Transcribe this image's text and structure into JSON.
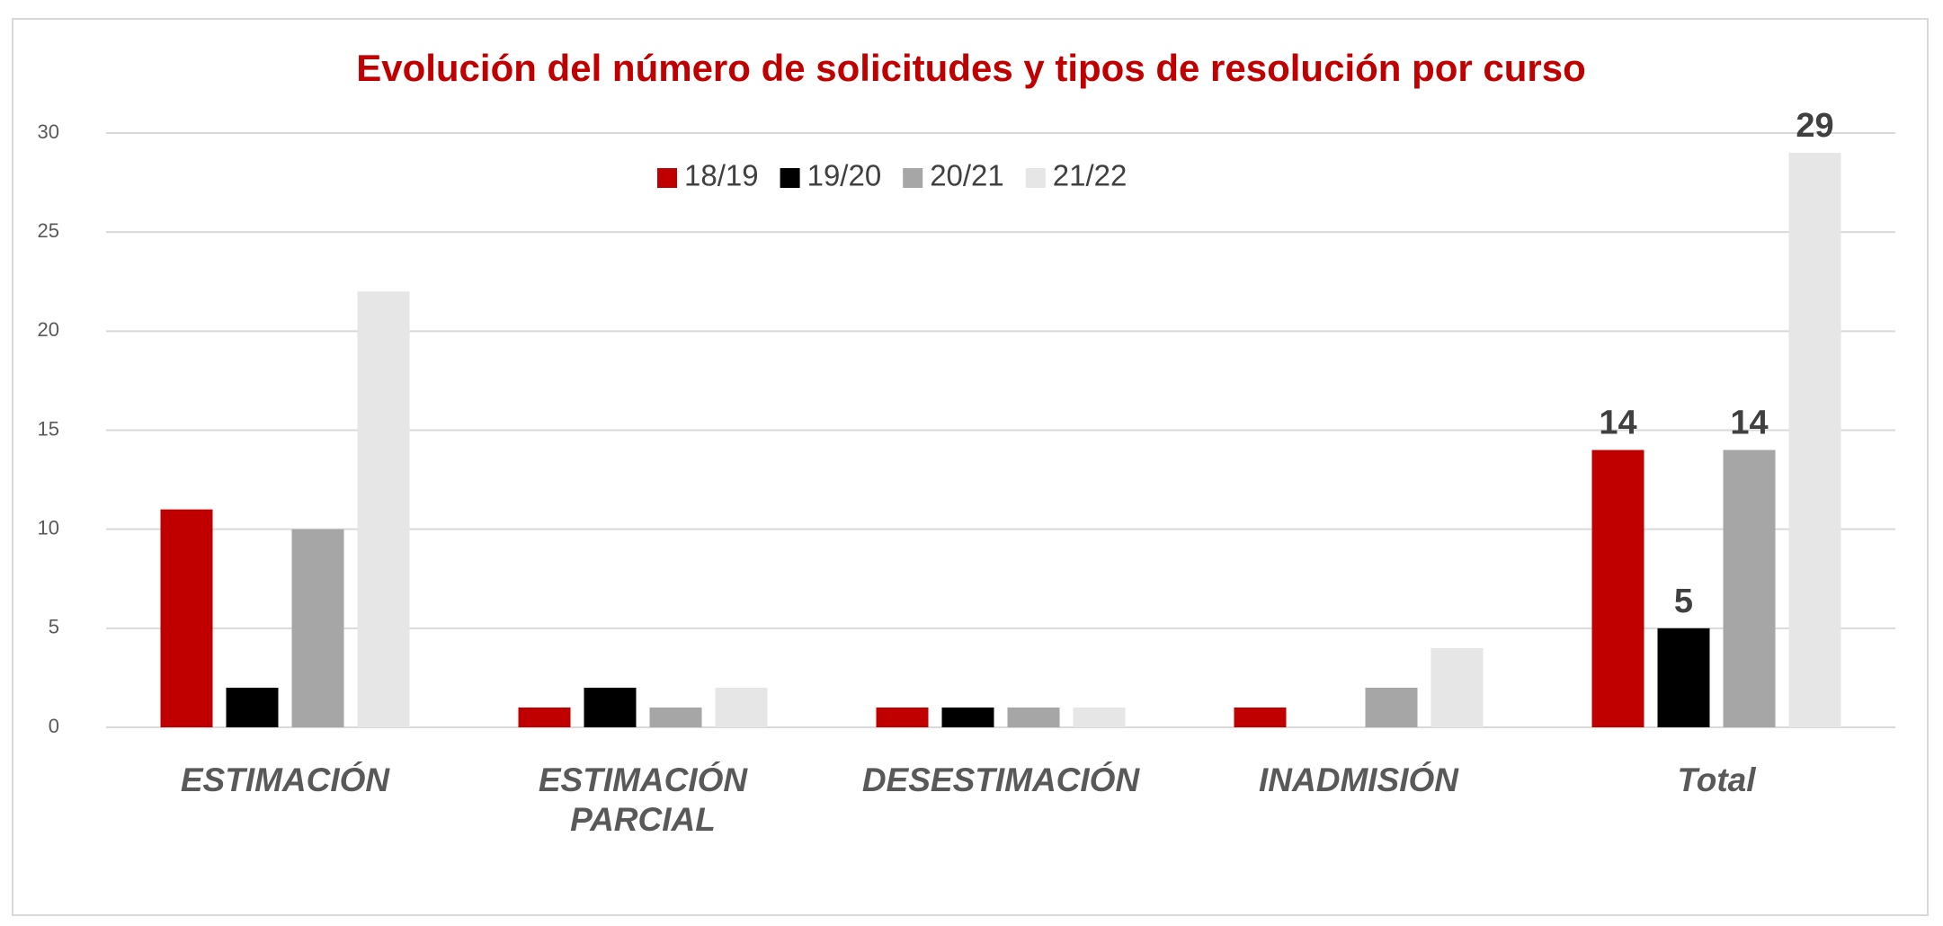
{
  "chart_data": {
    "type": "bar",
    "title": "Evolución del número de solicitudes y tipos de resolución por curso",
    "categories": [
      "ESTIMACIÓN",
      "ESTIMACIÓN PARCIAL",
      "DESESTIMACIÓN",
      "INADMISIÓN",
      "Total"
    ],
    "series": [
      {
        "name": "18/19",
        "color": "#c00000",
        "values": [
          11,
          1,
          1,
          1,
          14
        ],
        "value_labels": [
          null,
          null,
          null,
          null,
          "14"
        ]
      },
      {
        "name": "19/20",
        "color": "#000000",
        "values": [
          2,
          2,
          1,
          0,
          5
        ],
        "value_labels": [
          null,
          null,
          null,
          null,
          "5"
        ]
      },
      {
        "name": "20/21",
        "color": "#a6a6a6",
        "values": [
          10,
          1,
          1,
          2,
          14
        ],
        "value_labels": [
          null,
          null,
          null,
          null,
          "14"
        ]
      },
      {
        "name": "21/22",
        "color": "#e6e6e6",
        "values": [
          22,
          2,
          1,
          4,
          29
        ],
        "value_labels": [
          null,
          null,
          null,
          null,
          "29"
        ]
      }
    ],
    "ylim": [
      0,
      30
    ],
    "yticks": [
      0,
      5,
      10,
      15,
      20,
      25,
      30
    ],
    "grid": true,
    "legend": "top"
  }
}
